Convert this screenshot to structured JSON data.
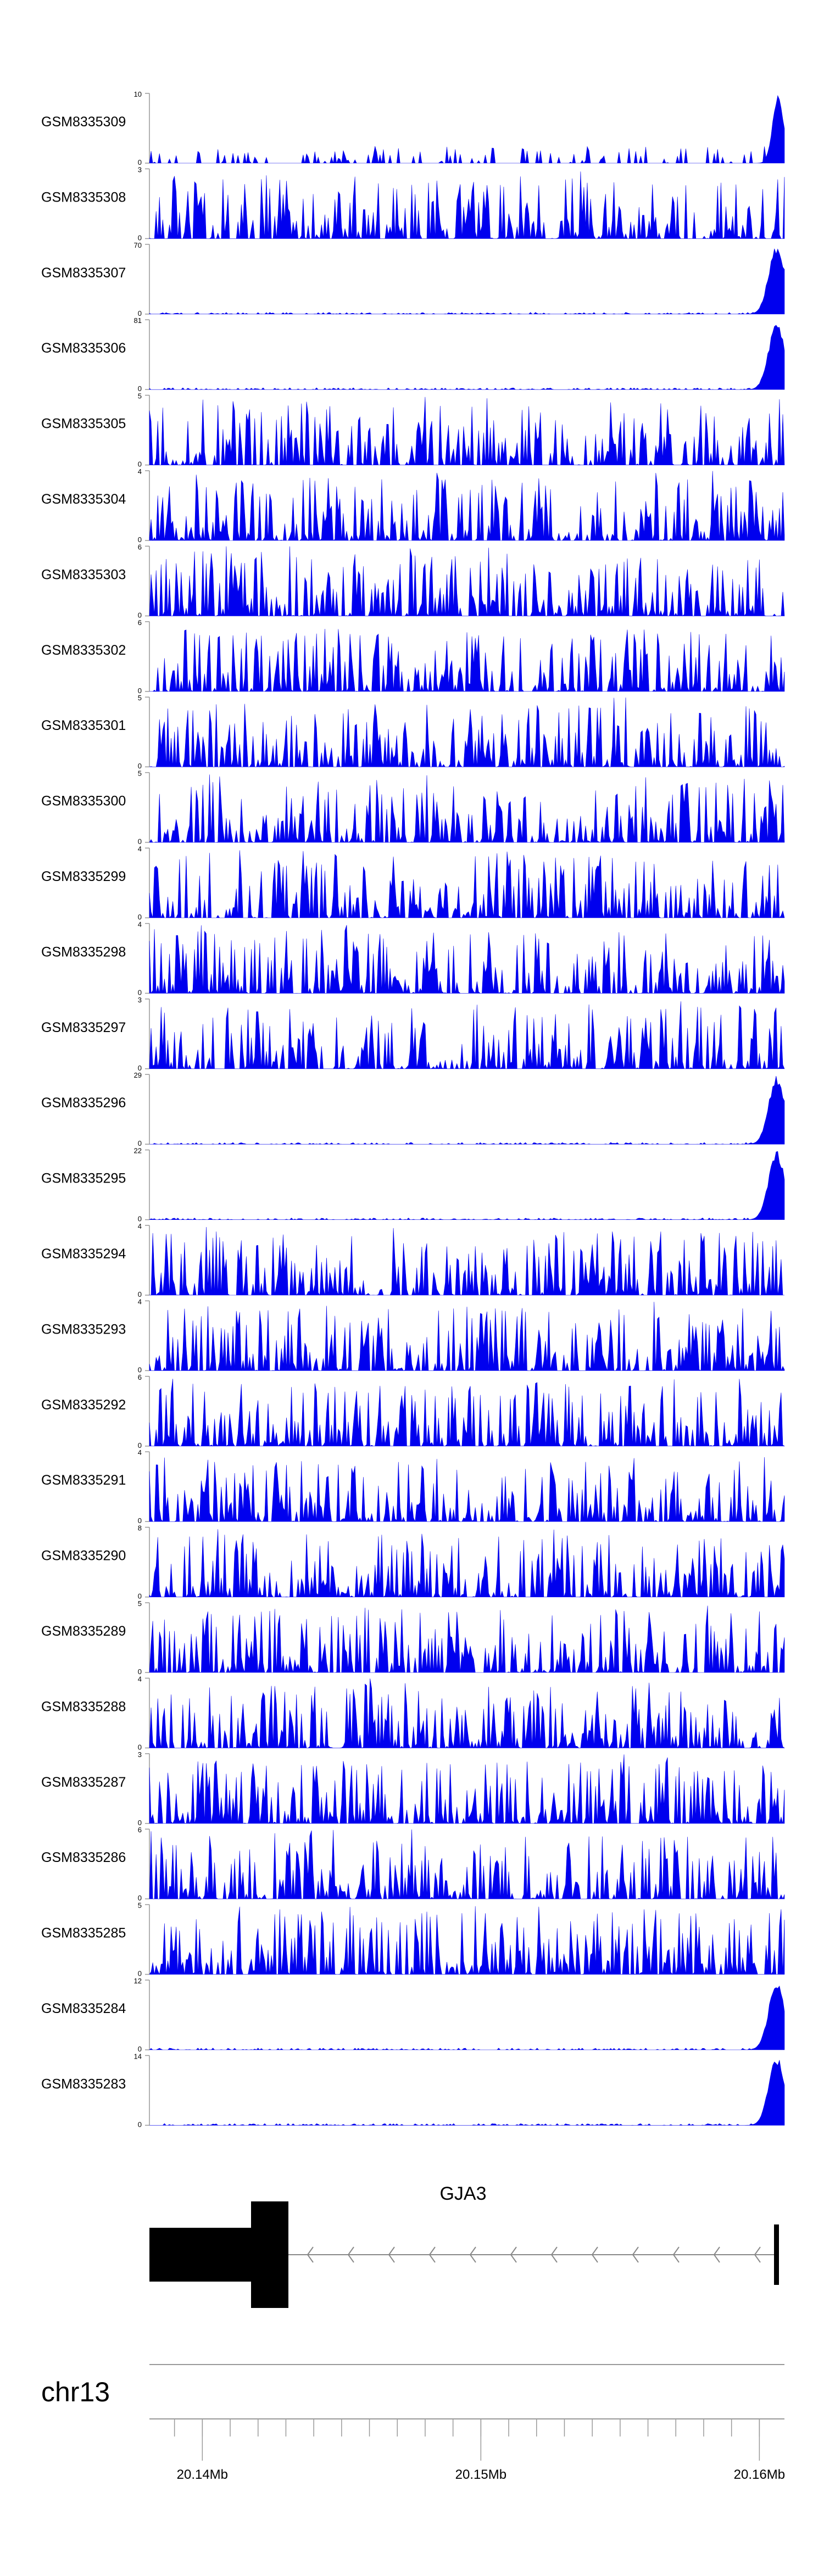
{
  "chart_data": {
    "type": "area",
    "title": "",
    "xlabel": "",
    "ylabel": "",
    "x_ticks": [
      {
        "value": 20.14,
        "label": "20.14Mb"
      },
      {
        "value": 20.15,
        "label": "20.15Mb"
      },
      {
        "value": 20.16,
        "label": "20.16Mb"
      }
    ],
    "xlim": [
      20.1381,
      20.1609
    ],
    "series_color": "#0000ee",
    "tracks": [
      {
        "name": "GSM8335309",
        "ymax": "10",
        "ymin": "0",
        "ymax_value": 10,
        "profile": "sparse_spike_end",
        "peak_fraction": 0.95
      },
      {
        "name": "GSM8335308",
        "ymax": "3",
        "ymin": "0",
        "ymax_value": 3,
        "profile": "noisy"
      },
      {
        "name": "GSM8335307",
        "ymax": "70",
        "ymin": "0",
        "ymax_value": 70,
        "profile": "flat_spike_end",
        "peak_fraction": 0.95
      },
      {
        "name": "GSM8335306",
        "ymax": "81",
        "ymin": "0",
        "ymax_value": 81,
        "profile": "flat_spike_end",
        "peak_fraction": 0.95
      },
      {
        "name": "GSM8335305",
        "ymax": "5",
        "ymin": "0",
        "ymax_value": 5,
        "profile": "noisy"
      },
      {
        "name": "GSM8335304",
        "ymax": "4",
        "ymin": "0",
        "ymax_value": 4,
        "profile": "noisy"
      },
      {
        "name": "GSM8335303",
        "ymax": "6",
        "ymin": "0",
        "ymax_value": 6,
        "profile": "noisy"
      },
      {
        "name": "GSM8335302",
        "ymax": "6",
        "ymin": "0",
        "ymax_value": 6,
        "profile": "noisy"
      },
      {
        "name": "GSM8335301",
        "ymax": "5",
        "ymin": "0",
        "ymax_value": 5,
        "profile": "noisy"
      },
      {
        "name": "GSM8335300",
        "ymax": "5",
        "ymin": "0",
        "ymax_value": 5,
        "profile": "noisy"
      },
      {
        "name": "GSM8335299",
        "ymax": "4",
        "ymin": "0",
        "ymax_value": 4,
        "profile": "noisy"
      },
      {
        "name": "GSM8335298",
        "ymax": "4",
        "ymin": "0",
        "ymax_value": 4,
        "profile": "noisy"
      },
      {
        "name": "GSM8335297",
        "ymax": "3",
        "ymin": "0",
        "ymax_value": 3,
        "profile": "noisy"
      },
      {
        "name": "GSM8335296",
        "ymax": "29",
        "ymin": "0",
        "ymax_value": 29,
        "profile": "flat_spike_end",
        "peak_fraction": 0.95
      },
      {
        "name": "GSM8335295",
        "ymax": "22",
        "ymin": "0",
        "ymax_value": 22,
        "profile": "flat_spike_end",
        "peak_fraction": 0.95
      },
      {
        "name": "GSM8335294",
        "ymax": "4",
        "ymin": "0",
        "ymax_value": 4,
        "profile": "noisy"
      },
      {
        "name": "GSM8335293",
        "ymax": "4",
        "ymin": "0",
        "ymax_value": 4,
        "profile": "noisy"
      },
      {
        "name": "GSM8335292",
        "ymax": "6",
        "ymin": "0",
        "ymax_value": 6,
        "profile": "noisy"
      },
      {
        "name": "GSM8335291",
        "ymax": "4",
        "ymin": "0",
        "ymax_value": 4,
        "profile": "noisy"
      },
      {
        "name": "GSM8335290",
        "ymax": "8",
        "ymin": "0",
        "ymax_value": 8,
        "profile": "noisy"
      },
      {
        "name": "GSM8335289",
        "ymax": "5",
        "ymin": "0",
        "ymax_value": 5,
        "profile": "noisy"
      },
      {
        "name": "GSM8335288",
        "ymax": "4",
        "ymin": "0",
        "ymax_value": 4,
        "profile": "noisy"
      },
      {
        "name": "GSM8335287",
        "ymax": "3",
        "ymin": "0",
        "ymax_value": 3,
        "profile": "noisy"
      },
      {
        "name": "GSM8335286",
        "ymax": "6",
        "ymin": "0",
        "ymax_value": 6,
        "profile": "noisy"
      },
      {
        "name": "GSM8335285",
        "ymax": "5",
        "ymin": "0",
        "ymax_value": 5,
        "profile": "noisy"
      },
      {
        "name": "GSM8335284",
        "ymax": "12",
        "ymin": "0",
        "ymax_value": 12,
        "profile": "flat_spike_end",
        "peak_fraction": 0.95
      },
      {
        "name": "GSM8335283",
        "ymax": "14",
        "ymin": "0",
        "ymax_value": 14,
        "profile": "flat_spike_end",
        "peak_fraction": 0.95
      }
    ],
    "gene": {
      "name": "GJA3",
      "strand": "-",
      "start": 20.1381,
      "end": 20.1609
    },
    "chromosome": "chr13"
  }
}
